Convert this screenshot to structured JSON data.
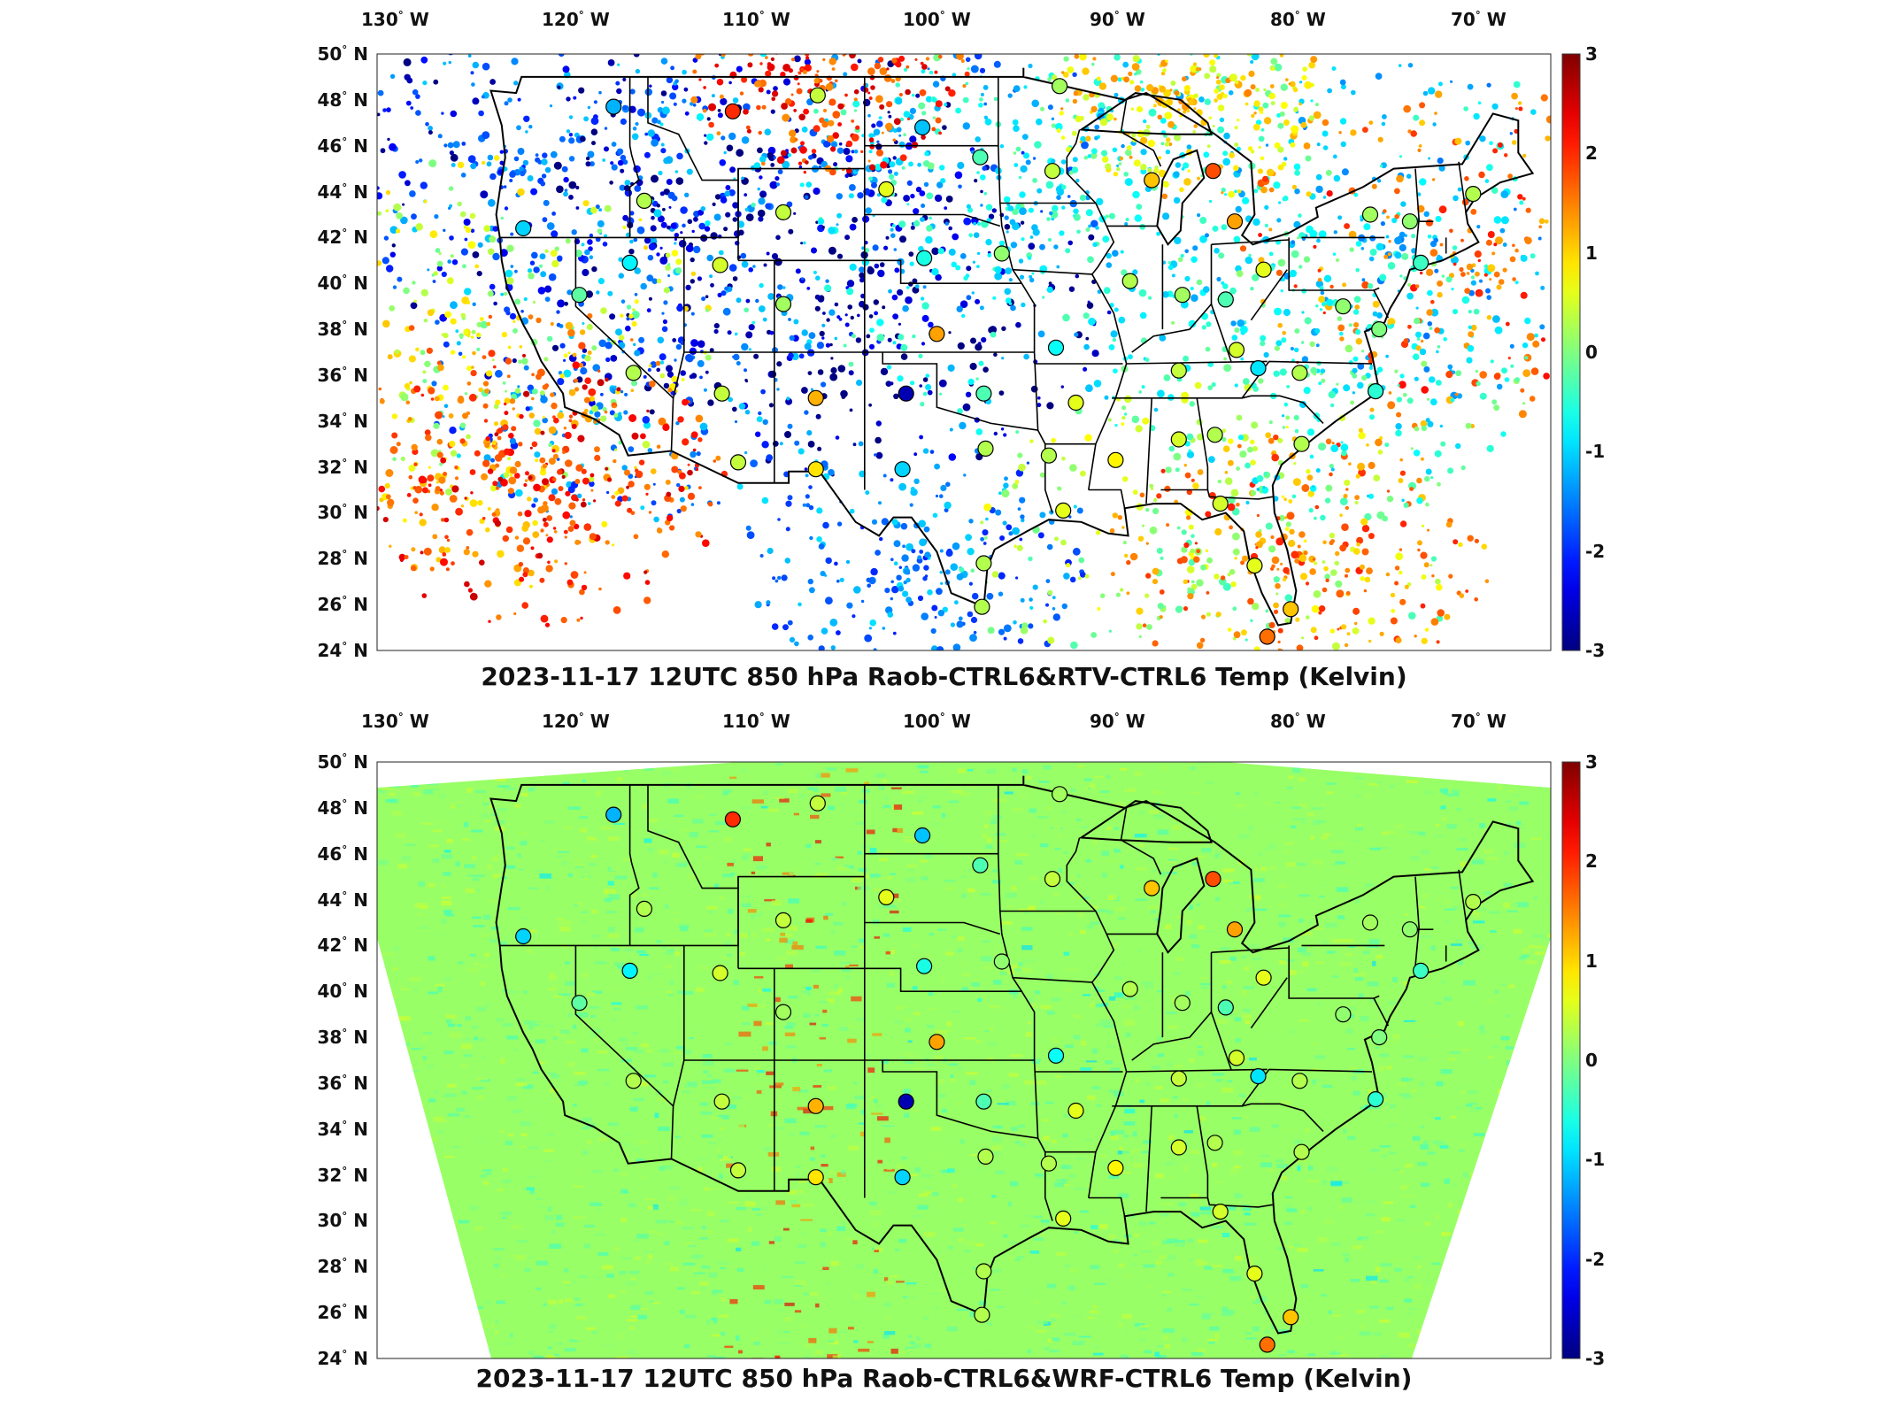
{
  "panels": [
    {
      "title": "2023-11-17 12UTC 850 hPa Raob-CTRL6&RTV-CTRL6 Temp (Kelvin)",
      "field_style": "retrieval-scatter"
    },
    {
      "title": "2023-11-17 12UTC 850 hPa Raob-CTRL6&WRF-CTRL6 Temp (Kelvin)",
      "field_style": "full-domain"
    }
  ],
  "map": {
    "lon_ticks": [
      "130° W",
      "120° W",
      "110° W",
      "100° W",
      "90° W",
      "80° W",
      "70° W"
    ],
    "lon_values": [
      -130,
      -120,
      -110,
      -100,
      -90,
      -80,
      -70
    ],
    "lat_ticks": [
      "50° N",
      "48° N",
      "46° N",
      "44° N",
      "42° N",
      "40° N",
      "38° N",
      "36° N",
      "34° N",
      "32° N",
      "30° N",
      "28° N",
      "26° N",
      "24° N"
    ],
    "lat_values": [
      50,
      48,
      46,
      44,
      42,
      40,
      38,
      36,
      34,
      32,
      30,
      28,
      26,
      24
    ],
    "lon_range": [
      -131,
      -66
    ],
    "lat_range": [
      24,
      50
    ]
  },
  "colorbar": {
    "ticks": [
      "3",
      "2",
      "1",
      "0",
      "-1",
      "-2",
      "-3"
    ],
    "min": -3,
    "max": 3,
    "colormap": "jet"
  },
  "raob_stations": [
    {
      "lon": -117.9,
      "lat": 47.7,
      "value": -1.2
    },
    {
      "lon": -111.3,
      "lat": 47.5,
      "value": 2.0
    },
    {
      "lon": -106.6,
      "lat": 48.2,
      "value": 0.4
    },
    {
      "lon": -100.8,
      "lat": 46.8,
      "value": -1.1
    },
    {
      "lon": -97.6,
      "lat": 45.5,
      "value": -0.3
    },
    {
      "lon": -93.6,
      "lat": 44.9,
      "value": 0.4
    },
    {
      "lon": -93.2,
      "lat": 48.6,
      "value": 0.2
    },
    {
      "lon": -88.1,
      "lat": 44.5,
      "value": 1.1
    },
    {
      "lon": -84.7,
      "lat": 44.9,
      "value": 1.8
    },
    {
      "lon": -83.5,
      "lat": 42.7,
      "value": 1.3
    },
    {
      "lon": -122.9,
      "lat": 42.4,
      "value": -1.0
    },
    {
      "lon": -116.2,
      "lat": 43.6,
      "value": 0.3
    },
    {
      "lon": -108.5,
      "lat": 43.1,
      "value": 0.4
    },
    {
      "lon": -102.8,
      "lat": 44.1,
      "value": 0.6
    },
    {
      "lon": -117.0,
      "lat": 40.9,
      "value": -0.8
    },
    {
      "lon": -112.0,
      "lat": 40.8,
      "value": 0.5
    },
    {
      "lon": -119.8,
      "lat": 39.5,
      "value": -0.2
    },
    {
      "lon": -108.5,
      "lat": 39.1,
      "value": 0.2
    },
    {
      "lon": -100.7,
      "lat": 41.1,
      "value": -0.6
    },
    {
      "lon": -96.4,
      "lat": 41.3,
      "value": 0.1
    },
    {
      "lon": -89.3,
      "lat": 40.1,
      "value": 0.3
    },
    {
      "lon": -86.4,
      "lat": 39.5,
      "value": 0.2
    },
    {
      "lon": -81.9,
      "lat": 40.6,
      "value": 0.6
    },
    {
      "lon": -76.0,
      "lat": 43.0,
      "value": 0.2
    },
    {
      "lon": -73.8,
      "lat": 42.7,
      "value": 0.1
    },
    {
      "lon": -70.3,
      "lat": 43.9,
      "value": 0.3
    },
    {
      "lon": -73.2,
      "lat": 40.9,
      "value": -0.4
    },
    {
      "lon": -77.5,
      "lat": 39.0,
      "value": 0.1
    },
    {
      "lon": -75.5,
      "lat": 38.0,
      "value": 0.0
    },
    {
      "lon": -84.0,
      "lat": 39.3,
      "value": -0.3
    },
    {
      "lon": -83.4,
      "lat": 37.1,
      "value": 0.5
    },
    {
      "lon": -86.6,
      "lat": 36.2,
      "value": 0.4
    },
    {
      "lon": -82.2,
      "lat": 36.3,
      "value": -0.9
    },
    {
      "lon": -79.9,
      "lat": 36.1,
      "value": 0.3
    },
    {
      "lon": -75.7,
      "lat": 35.3,
      "value": -0.5
    },
    {
      "lon": -79.8,
      "lat": 33.0,
      "value": 0.3
    },
    {
      "lon": -86.6,
      "lat": 33.2,
      "value": 0.5
    },
    {
      "lon": -84.6,
      "lat": 33.4,
      "value": 0.3
    },
    {
      "lon": -90.1,
      "lat": 32.3,
      "value": 0.8
    },
    {
      "lon": -93.8,
      "lat": 32.5,
      "value": 0.3
    },
    {
      "lon": -92.3,
      "lat": 34.8,
      "value": 0.6
    },
    {
      "lon": -93.4,
      "lat": 37.2,
      "value": -0.7
    },
    {
      "lon": -97.4,
      "lat": 35.2,
      "value": -0.3
    },
    {
      "lon": -97.3,
      "lat": 32.8,
      "value": 0.3
    },
    {
      "lon": -101.7,
      "lat": 35.2,
      "value": -2.7
    },
    {
      "lon": -101.9,
      "lat": 31.9,
      "value": -1.0
    },
    {
      "lon": -106.7,
      "lat": 35.0,
      "value": 1.2
    },
    {
      "lon": -106.7,
      "lat": 31.9,
      "value": 0.9
    },
    {
      "lon": -111.9,
      "lat": 35.2,
      "value": 0.4
    },
    {
      "lon": -111.0,
      "lat": 32.2,
      "value": 0.4
    },
    {
      "lon": -116.8,
      "lat": 36.1,
      "value": 0.3
    },
    {
      "lon": -100.0,
      "lat": 37.8,
      "value": 1.3
    },
    {
      "lon": -93.0,
      "lat": 30.1,
      "value": 0.6
    },
    {
      "lon": -97.4,
      "lat": 27.8,
      "value": 0.3
    },
    {
      "lon": -97.5,
      "lat": 25.9,
      "value": 0.3
    },
    {
      "lon": -84.3,
      "lat": 30.4,
      "value": 0.5
    },
    {
      "lon": -82.4,
      "lat": 27.7,
      "value": 0.6
    },
    {
      "lon": -80.4,
      "lat": 25.8,
      "value": 1.1
    },
    {
      "lon": -81.7,
      "lat": 24.6,
      "value": 1.6
    }
  ]
}
